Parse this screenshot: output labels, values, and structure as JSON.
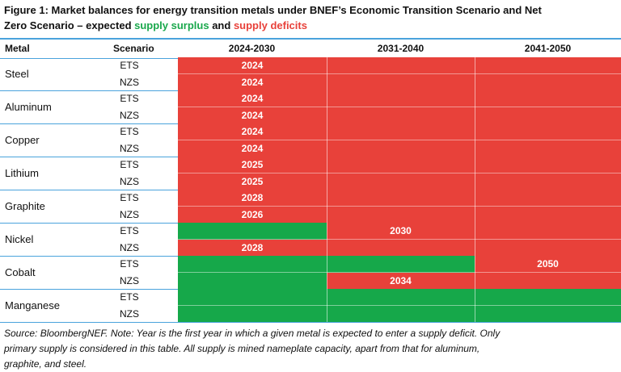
{
  "title": {
    "line1": "Figure 1: Market balances for energy transition metals under BNEF’s Economic Transition Scenario and Net",
    "line2_prefix": "Zero Scenario – expected ",
    "surplus": "supply surplus",
    "and": " and ",
    "deficits": "supply deficits"
  },
  "headers": {
    "metal": "Metal",
    "scenario": "Scenario",
    "p1": "2024-2030",
    "p2": "2031-2040",
    "p3": "2041-2050"
  },
  "colors": {
    "deficit": "#e8413a",
    "surplus": "#16a84a",
    "rule": "#4aa3dc"
  },
  "metals": [
    {
      "name": "Steel",
      "rows": [
        {
          "scenario": "ETS",
          "cells": [
            "R",
            "R",
            "R"
          ],
          "label": "2024",
          "label_col": 0
        },
        {
          "scenario": "NZS",
          "cells": [
            "R",
            "R",
            "R"
          ],
          "label": "2024",
          "label_col": 0
        }
      ]
    },
    {
      "name": "Aluminum",
      "rows": [
        {
          "scenario": "ETS",
          "cells": [
            "R",
            "R",
            "R"
          ],
          "label": "2024",
          "label_col": 0
        },
        {
          "scenario": "NZS",
          "cells": [
            "R",
            "R",
            "R"
          ],
          "label": "2024",
          "label_col": 0
        }
      ]
    },
    {
      "name": "Copper",
      "rows": [
        {
          "scenario": "ETS",
          "cells": [
            "R",
            "R",
            "R"
          ],
          "label": "2024",
          "label_col": 0
        },
        {
          "scenario": "NZS",
          "cells": [
            "R",
            "R",
            "R"
          ],
          "label": "2024",
          "label_col": 0
        }
      ]
    },
    {
      "name": "Lithium",
      "rows": [
        {
          "scenario": "ETS",
          "cells": [
            "R",
            "R",
            "R"
          ],
          "label": "2025",
          "label_col": 0
        },
        {
          "scenario": "NZS",
          "cells": [
            "R",
            "R",
            "R"
          ],
          "label": "2025",
          "label_col": 0
        }
      ]
    },
    {
      "name": "Graphite",
      "rows": [
        {
          "scenario": "ETS",
          "cells": [
            "R",
            "R",
            "R"
          ],
          "label": "2028",
          "label_col": 0
        },
        {
          "scenario": "NZS",
          "cells": [
            "R",
            "R",
            "R"
          ],
          "label": "2026",
          "label_col": 0
        }
      ]
    },
    {
      "name": "Nickel",
      "rows": [
        {
          "scenario": "ETS",
          "cells": [
            "G",
            "R",
            "R"
          ],
          "label": "2030",
          "label_col": 1
        },
        {
          "scenario": "NZS",
          "cells": [
            "R",
            "R",
            "R"
          ],
          "label": "2028",
          "label_col": 0
        }
      ]
    },
    {
      "name": "Cobalt",
      "rows": [
        {
          "scenario": "ETS",
          "cells": [
            "G",
            "G",
            "R"
          ],
          "label": "2050",
          "label_col": 2
        },
        {
          "scenario": "NZS",
          "cells": [
            "G",
            "R",
            "R"
          ],
          "label": "2034",
          "label_col": 1
        }
      ]
    },
    {
      "name": "Manganese",
      "rows": [
        {
          "scenario": "ETS",
          "cells": [
            "G",
            "G",
            "G"
          ],
          "label": "",
          "label_col": -1
        },
        {
          "scenario": "NZS",
          "cells": [
            "G",
            "G",
            "G"
          ],
          "label": "",
          "label_col": -1
        }
      ]
    }
  ],
  "source": {
    "line1": "Source: BloombergNEF. Note: Year is the first year in which a given metal is expected to enter a supply deficit. Only",
    "line2": "primary supply is considered in this table. All supply is mined nameplate capacity, apart from that for aluminum,",
    "line3": "graphite, and steel."
  }
}
